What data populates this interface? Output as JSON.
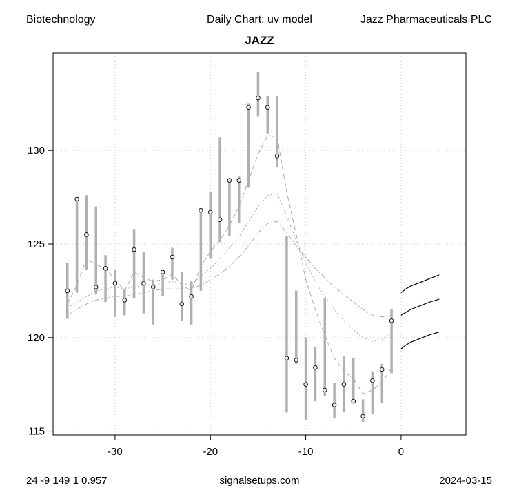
{
  "header": {
    "left": "Biotechnology",
    "center": "Daily Chart: uv model",
    "right": "Jazz Pharmaceuticals PLC"
  },
  "footer": {
    "left": "24 -9 149 1 0.957",
    "center": "signalsetups.com",
    "right": "2024-03-15"
  },
  "chart_data": {
    "type": "line",
    "title": "JAZZ",
    "xlabel": "",
    "ylabel": "",
    "xlim": [
      -36.5,
      6.8
    ],
    "ylim": [
      114.8,
      135.2
    ],
    "x_ticks": [
      -30,
      -20,
      -10,
      0
    ],
    "y_ticks": [
      115,
      120,
      125,
      130
    ],
    "grid": true,
    "colors": {
      "range_bar": "#b0b0b0",
      "band": "#a8a8a8",
      "forecast": "#000000",
      "grid": "#cccccc",
      "point_fill": "#e8e8e8"
    },
    "range_bars": [
      {
        "x": -35,
        "low": 121.0,
        "high": 124.0,
        "close": 122.5
      },
      {
        "x": -34,
        "low": 122.4,
        "high": 127.4,
        "close": 127.4
      },
      {
        "x": -33,
        "low": 123.6,
        "high": 127.6,
        "close": 125.5
      },
      {
        "x": -32,
        "low": 122.3,
        "high": 127.0,
        "close": 122.7
      },
      {
        "x": -31,
        "low": 121.9,
        "high": 124.4,
        "close": 123.7
      },
      {
        "x": -30,
        "low": 121.1,
        "high": 123.6,
        "close": 122.9
      },
      {
        "x": -29,
        "low": 121.2,
        "high": 122.6,
        "close": 122.0
      },
      {
        "x": -28,
        "low": 122.1,
        "high": 125.8,
        "close": 124.7
      },
      {
        "x": -27,
        "low": 121.3,
        "high": 124.6,
        "close": 122.9
      },
      {
        "x": -26,
        "low": 120.7,
        "high": 123.1,
        "close": 122.7
      },
      {
        "x": -25,
        "low": 122.2,
        "high": 123.6,
        "close": 123.5
      },
      {
        "x": -24,
        "low": 123.1,
        "high": 124.8,
        "close": 124.3
      },
      {
        "x": -23,
        "low": 120.9,
        "high": 123.5,
        "close": 121.8
      },
      {
        "x": -22,
        "low": 120.7,
        "high": 123.0,
        "close": 122.2
      },
      {
        "x": -21,
        "low": 122.5,
        "high": 126.9,
        "close": 126.8
      },
      {
        "x": -20,
        "low": 124.2,
        "high": 127.8,
        "close": 126.7
      },
      {
        "x": -19,
        "low": 125.1,
        "high": 130.7,
        "close": 126.3
      },
      {
        "x": -18,
        "low": 125.4,
        "high": 128.4,
        "close": 128.4
      },
      {
        "x": -17,
        "low": 126.1,
        "high": 128.6,
        "close": 128.4
      },
      {
        "x": -16,
        "low": 128.0,
        "high": 132.5,
        "close": 132.3
      },
      {
        "x": -15,
        "low": 131.8,
        "high": 134.2,
        "close": 132.8
      },
      {
        "x": -14,
        "low": 130.9,
        "high": 132.9,
        "close": 132.3
      },
      {
        "x": -13,
        "low": 129.1,
        "high": 132.9,
        "close": 129.7
      },
      {
        "x": -12,
        "low": 116.0,
        "high": 125.4,
        "close": 118.9
      },
      {
        "x": -11,
        "low": 118.6,
        "high": 122.5,
        "close": 118.8
      },
      {
        "x": -10,
        "low": 115.6,
        "high": 120.0,
        "close": 117.5
      },
      {
        "x": -9,
        "low": 116.6,
        "high": 119.5,
        "close": 118.4
      },
      {
        "x": -8,
        "low": 116.9,
        "high": 122.1,
        "close": 117.2
      },
      {
        "x": -7,
        "low": 115.7,
        "high": 117.6,
        "close": 116.4
      },
      {
        "x": -6,
        "low": 116.0,
        "high": 119.0,
        "close": 117.5
      },
      {
        "x": -5,
        "low": 116.5,
        "high": 118.9,
        "close": 116.6
      },
      {
        "x": -4,
        "low": 115.5,
        "high": 116.7,
        "close": 115.8
      },
      {
        "x": -3,
        "low": 115.9,
        "high": 118.2,
        "close": 117.7
      },
      {
        "x": -2,
        "low": 116.5,
        "high": 118.6,
        "close": 118.3
      },
      {
        "x": -1,
        "low": 118.1,
        "high": 121.5,
        "close": 120.9
      }
    ],
    "bands": [
      {
        "style": "dash",
        "points": [
          [
            -35,
            121.8
          ],
          [
            -34,
            122.8
          ],
          [
            -33,
            124.2
          ],
          [
            -32,
            123.9
          ],
          [
            -31,
            123.7
          ],
          [
            -30,
            123.1
          ],
          [
            -29,
            122.5
          ],
          [
            -28,
            123.5
          ],
          [
            -27,
            123.2
          ],
          [
            -26,
            123.0
          ],
          [
            -25,
            123.1
          ],
          [
            -24,
            123.4
          ],
          [
            -23,
            122.8
          ],
          [
            -22,
            122.5
          ],
          [
            -21,
            123.8
          ],
          [
            -20,
            124.6
          ],
          [
            -19,
            125.2
          ],
          [
            -18,
            126.0
          ],
          [
            -17,
            127.0
          ],
          [
            -16,
            128.4
          ],
          [
            -15,
            129.8
          ],
          [
            -14,
            130.8
          ],
          [
            -13,
            130.7
          ],
          [
            -12,
            127.8
          ],
          [
            -11,
            125.5
          ],
          [
            -10,
            123.1
          ],
          [
            -9,
            121.5
          ],
          [
            -8,
            120.1
          ],
          [
            -7,
            118.9
          ],
          [
            -6,
            118.2
          ],
          [
            -5,
            117.8
          ],
          [
            -4,
            117.0
          ],
          [
            -3,
            117.2
          ],
          [
            -2,
            117.6
          ],
          [
            -1,
            118.4
          ]
        ]
      },
      {
        "style": "dot",
        "points": [
          [
            -35,
            121.6
          ],
          [
            -34,
            121.9
          ],
          [
            -33,
            122.2
          ],
          [
            -32,
            122.5
          ],
          [
            -31,
            122.6
          ],
          [
            -30,
            122.7
          ],
          [
            -29,
            122.6
          ],
          [
            -28,
            122.7
          ],
          [
            -27,
            122.8
          ],
          [
            -26,
            122.8
          ],
          [
            -25,
            122.9
          ],
          [
            -24,
            123.0
          ],
          [
            -23,
            122.9
          ],
          [
            -22,
            122.8
          ],
          [
            -21,
            123.3
          ],
          [
            -20,
            123.7
          ],
          [
            -19,
            124.2
          ],
          [
            -18,
            124.8
          ],
          [
            -17,
            125.4
          ],
          [
            -16,
            126.2
          ],
          [
            -15,
            127.0
          ],
          [
            -14,
            127.6
          ],
          [
            -13,
            127.7
          ],
          [
            -12,
            126.5
          ],
          [
            -11,
            125.2
          ],
          [
            -10,
            124.0
          ],
          [
            -9,
            123.0
          ],
          [
            -8,
            122.2
          ],
          [
            -7,
            121.5
          ],
          [
            -6,
            120.9
          ],
          [
            -5,
            120.4
          ],
          [
            -4,
            120.0
          ],
          [
            -3,
            119.8
          ],
          [
            -2,
            119.9
          ],
          [
            -1,
            120.2
          ]
        ]
      },
      {
        "style": "dashdot",
        "points": [
          [
            -35,
            121.2
          ],
          [
            -34,
            121.5
          ],
          [
            -33,
            121.8
          ],
          [
            -32,
            122.0
          ],
          [
            -31,
            122.1
          ],
          [
            -30,
            122.2
          ],
          [
            -29,
            122.2
          ],
          [
            -28,
            122.3
          ],
          [
            -27,
            122.4
          ],
          [
            -26,
            122.5
          ],
          [
            -25,
            122.6
          ],
          [
            -24,
            122.6
          ],
          [
            -23,
            122.6
          ],
          [
            -22,
            122.6
          ],
          [
            -21,
            122.8
          ],
          [
            -20,
            123.1
          ],
          [
            -19,
            123.4
          ],
          [
            -18,
            123.8
          ],
          [
            -17,
            124.3
          ],
          [
            -16,
            124.9
          ],
          [
            -15,
            125.6
          ],
          [
            -14,
            126.1
          ],
          [
            -13,
            126.2
          ],
          [
            -12,
            125.6
          ],
          [
            -11,
            124.9
          ],
          [
            -10,
            124.3
          ],
          [
            -9,
            123.7
          ],
          [
            -8,
            123.2
          ],
          [
            -7,
            122.7
          ],
          [
            -6,
            122.3
          ],
          [
            -5,
            121.9
          ],
          [
            -4,
            121.5
          ],
          [
            -3,
            121.2
          ],
          [
            -2,
            121.1
          ],
          [
            -1,
            121.2
          ]
        ]
      }
    ],
    "forecast": [
      {
        "points": [
          [
            0,
            122.4
          ],
          [
            0.5,
            122.6
          ],
          [
            1,
            122.75
          ],
          [
            2,
            122.95
          ],
          [
            3,
            123.15
          ],
          [
            4,
            123.35
          ]
        ]
      },
      {
        "points": [
          [
            0,
            121.2
          ],
          [
            0.5,
            121.35
          ],
          [
            1,
            121.5
          ],
          [
            2,
            121.7
          ],
          [
            3,
            121.9
          ],
          [
            4,
            122.05
          ]
        ]
      },
      {
        "points": [
          [
            0,
            119.4
          ],
          [
            0.5,
            119.6
          ],
          [
            1,
            119.75
          ],
          [
            2,
            119.95
          ],
          [
            3,
            120.15
          ],
          [
            4,
            120.3
          ]
        ]
      }
    ]
  }
}
